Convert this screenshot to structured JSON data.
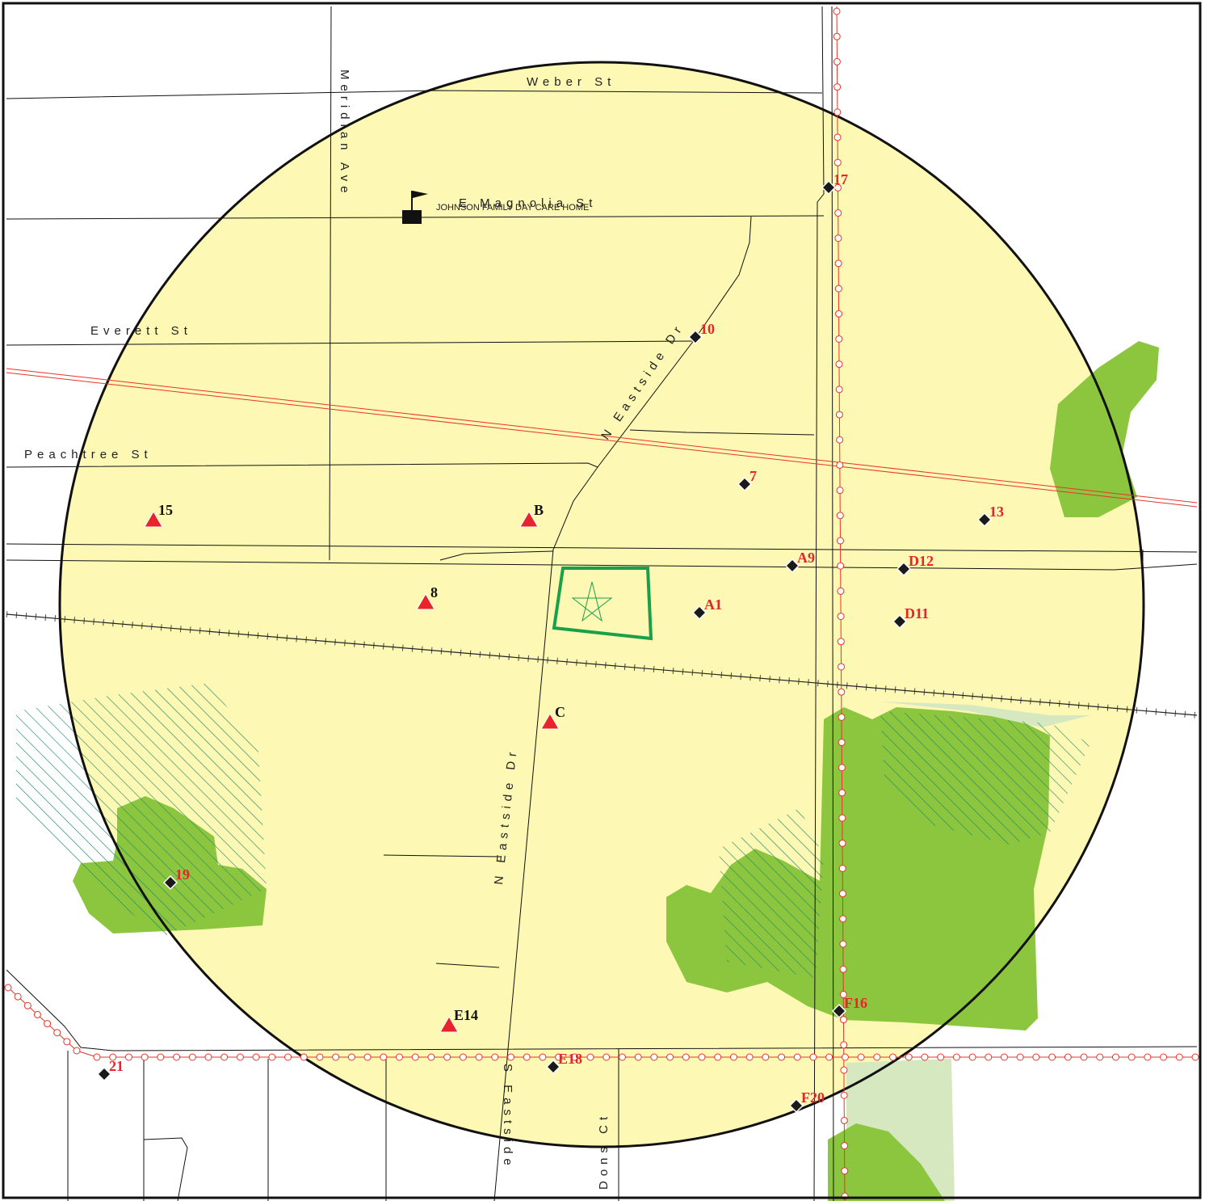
{
  "map": {
    "streets": [
      "Weber St",
      "Meridian Ave",
      "E Magnolia St",
      "Everett St",
      "Peachtree St",
      "N Eastside Dr",
      "N Eastside Dr",
      "S Eastside",
      "Dons Ct"
    ],
    "facility": "JOHNSON FAMILY DAY CARE HOME",
    "triangle_sites": [
      "15",
      "B",
      "8",
      "C",
      "E14"
    ],
    "diamond_sites": [
      "17",
      "10",
      "7",
      "13",
      "A9",
      "D12",
      "A1",
      "D11",
      "19",
      "F16",
      "21",
      "E18",
      "F20"
    ]
  }
}
